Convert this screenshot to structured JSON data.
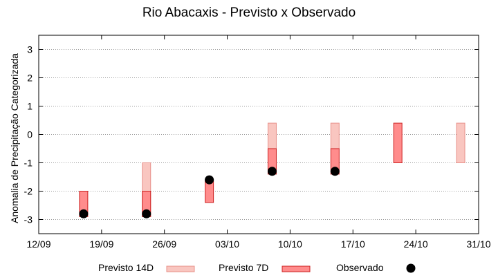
{
  "chart_data": {
    "type": "range-bar-scatter",
    "title": "Rio Abacaxis - Previsto x Observado",
    "xlabel": "",
    "ylabel": "Anomalia de Precipitação Categorizada",
    "x_tick_labels": [
      "12/09",
      "19/09",
      "26/09",
      "03/10",
      "10/10",
      "17/10",
      "24/10",
      "31/10"
    ],
    "xlim": [
      0,
      49
    ],
    "ylim": [
      -3.5,
      3.5
    ],
    "y_ticks": [
      -3,
      -2,
      -1,
      0,
      1,
      2,
      3
    ],
    "grid": true,
    "legend_position": "bottom",
    "series": [
      {
        "name": "Previsto 14D",
        "kind": "range",
        "fill": "#f9c6c0",
        "stroke": "#e8918a",
        "points": [
          {
            "x": 12,
            "low": -2.9,
            "high": -1.0
          },
          {
            "x": 26,
            "low": -0.5,
            "high": 0.4
          },
          {
            "x": 33,
            "low": -0.5,
            "high": 0.4
          },
          {
            "x": 47,
            "low": -1.0,
            "high": 0.4
          }
        ]
      },
      {
        "name": "Previsto 7D",
        "kind": "range",
        "fill": "#ff8c8c",
        "stroke": "#cc2222",
        "points": [
          {
            "x": 5,
            "low": -2.9,
            "high": -2.0
          },
          {
            "x": 12,
            "low": -2.9,
            "high": -2.0
          },
          {
            "x": 19,
            "low": -2.4,
            "high": -1.6
          },
          {
            "x": 26,
            "low": -1.4,
            "high": -0.5
          },
          {
            "x": 33,
            "low": -1.4,
            "high": -0.5
          },
          {
            "x": 40,
            "low": -1.0,
            "high": 0.4
          }
        ]
      },
      {
        "name": "Observado",
        "kind": "points",
        "color": "#000000",
        "points": [
          {
            "x": 5,
            "y": -2.8
          },
          {
            "x": 12,
            "y": -2.8
          },
          {
            "x": 19,
            "y": -1.6
          },
          {
            "x": 26,
            "y": -1.3
          },
          {
            "x": 33,
            "y": -1.3
          }
        ]
      }
    ]
  }
}
